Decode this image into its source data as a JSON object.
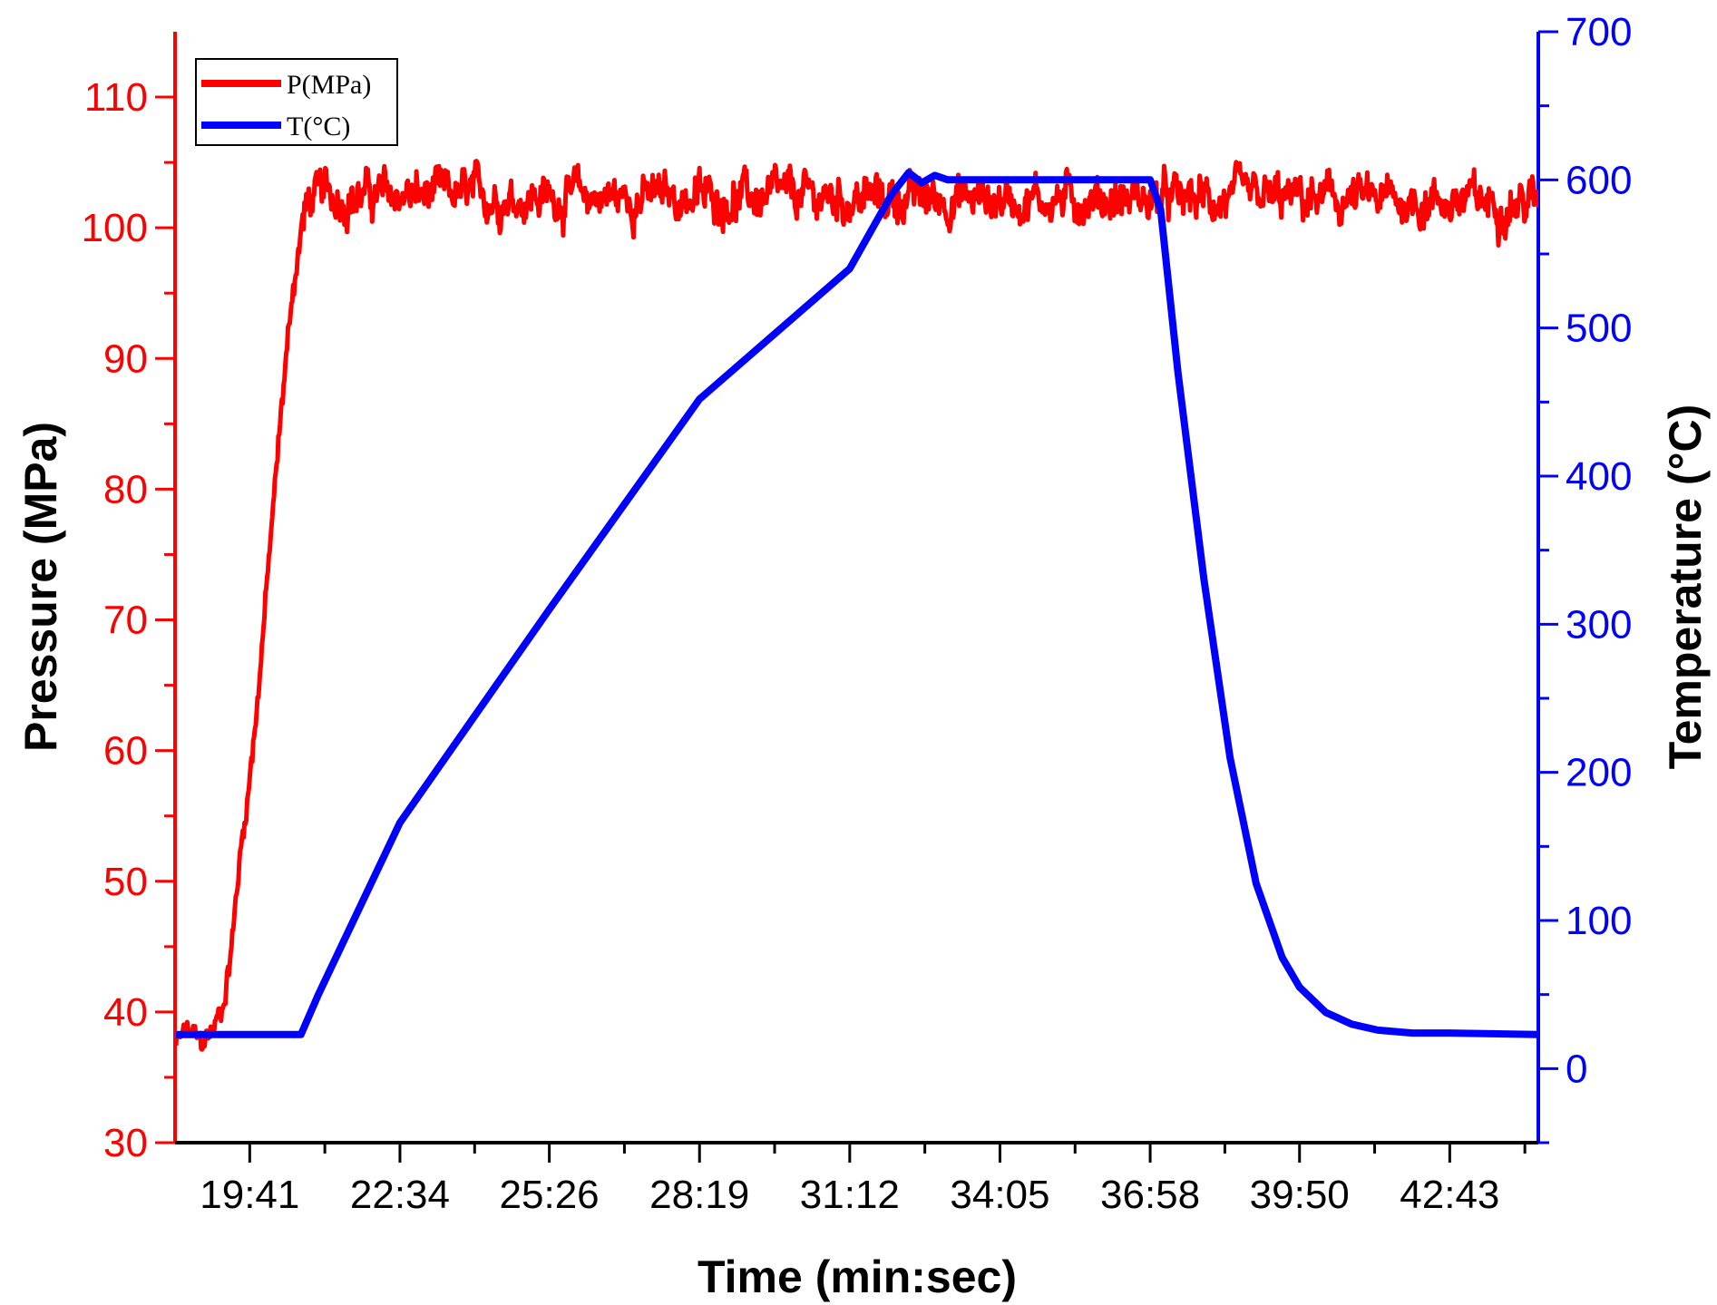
{
  "chart_data": {
    "type": "line",
    "x_unit": "min:sec",
    "xlabel": "Time (min:sec)",
    "ylabel_left": "Pressure (MPa)",
    "ylabel_right": "Temperature (°C)",
    "x_range": [
      "18:15",
      "44:25"
    ],
    "y_left_range": [
      30,
      115
    ],
    "y_right_range": [
      -50,
      700
    ],
    "x_ticks": [
      "19:41",
      "22:34",
      "25:26",
      "28:19",
      "31:12",
      "34:05",
      "36:58",
      "39:50",
      "42:43"
    ],
    "y_left_ticks": [
      30,
      40,
      50,
      60,
      70,
      80,
      90,
      100,
      110
    ],
    "y_right_ticks": [
      0,
      100,
      200,
      300,
      400,
      500,
      600,
      700
    ],
    "grid": false,
    "legend_position": "top-left",
    "colors": {
      "pressure": "#ff0000",
      "temperature": "#0000ff",
      "axis": "#000000"
    },
    "series": [
      {
        "name": "P(MPa)",
        "axis": "left",
        "color": "#ff0000",
        "x": [
          "18:16",
          "18:30",
          "18:45",
          "19:00",
          "19:10",
          "19:20",
          "19:30",
          "19:41",
          "19:50",
          "20:00",
          "20:10",
          "20:20",
          "20:30",
          "20:40",
          "20:45",
          "20:55",
          "21:10",
          "44:25"
        ],
        "y": [
          37.5,
          38.5,
          37.5,
          38.8,
          40.5,
          45,
          52,
          58,
          64,
          72,
          80,
          88,
          95,
          99.5,
          101.5,
          102.5,
          102.5,
          102
        ]
      },
      {
        "name": "T(°C)",
        "axis": "right",
        "color": "#0000ff",
        "x": [
          "18:16",
          "20:40",
          "21:00",
          "22:34",
          "25:26",
          "28:19",
          "31:12",
          "32:00",
          "32:20",
          "32:35",
          "32:50",
          "33:05",
          "33:25",
          "34:05",
          "36:58",
          "37:10",
          "37:30",
          "38:00",
          "38:30",
          "39:00",
          "39:30",
          "39:50",
          "40:20",
          "40:50",
          "41:20",
          "42:00",
          "42:43",
          "44:25"
        ],
        "y": [
          23,
          23,
          50,
          166,
          310,
          452,
          540,
          590,
          605,
          598,
          603,
          600,
          600,
          600,
          600,
          580,
          470,
          330,
          210,
          125,
          75,
          55,
          38,
          30,
          26,
          24,
          24,
          23
        ]
      }
    ]
  }
}
